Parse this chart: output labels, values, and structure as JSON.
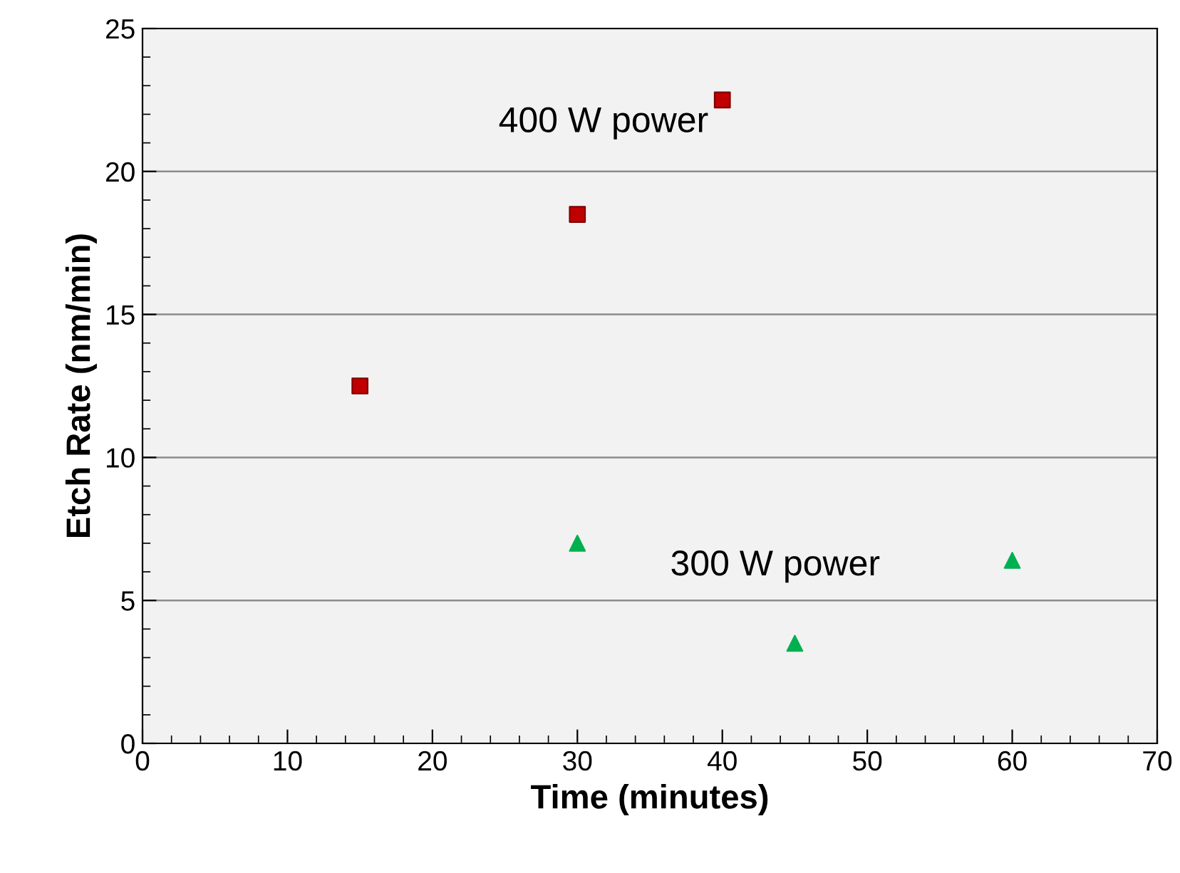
{
  "chart_data": {
    "type": "scatter",
    "xlabel": "Time (minutes)",
    "ylabel": "Etch Rate (nm/min)",
    "xlim": [
      0,
      70
    ],
    "xticks": [
      0,
      10,
      20,
      30,
      40,
      50,
      60,
      70
    ],
    "ylim": [
      0,
      25
    ],
    "yticks": [
      0,
      5,
      10,
      15,
      20,
      25
    ],
    "grid": "y",
    "legend": false,
    "series": [
      {
        "name": "400 W power",
        "color": "#c00000",
        "marker": "square",
        "x": [
          15,
          30,
          40
        ],
        "values": [
          12.5,
          18.5,
          22.5
        ]
      },
      {
        "name": "300 W power",
        "color": "#00b050",
        "marker": "triangle",
        "x": [
          30,
          45,
          60
        ],
        "values": [
          7.0,
          3.5,
          6.4
        ]
      }
    ]
  }
}
